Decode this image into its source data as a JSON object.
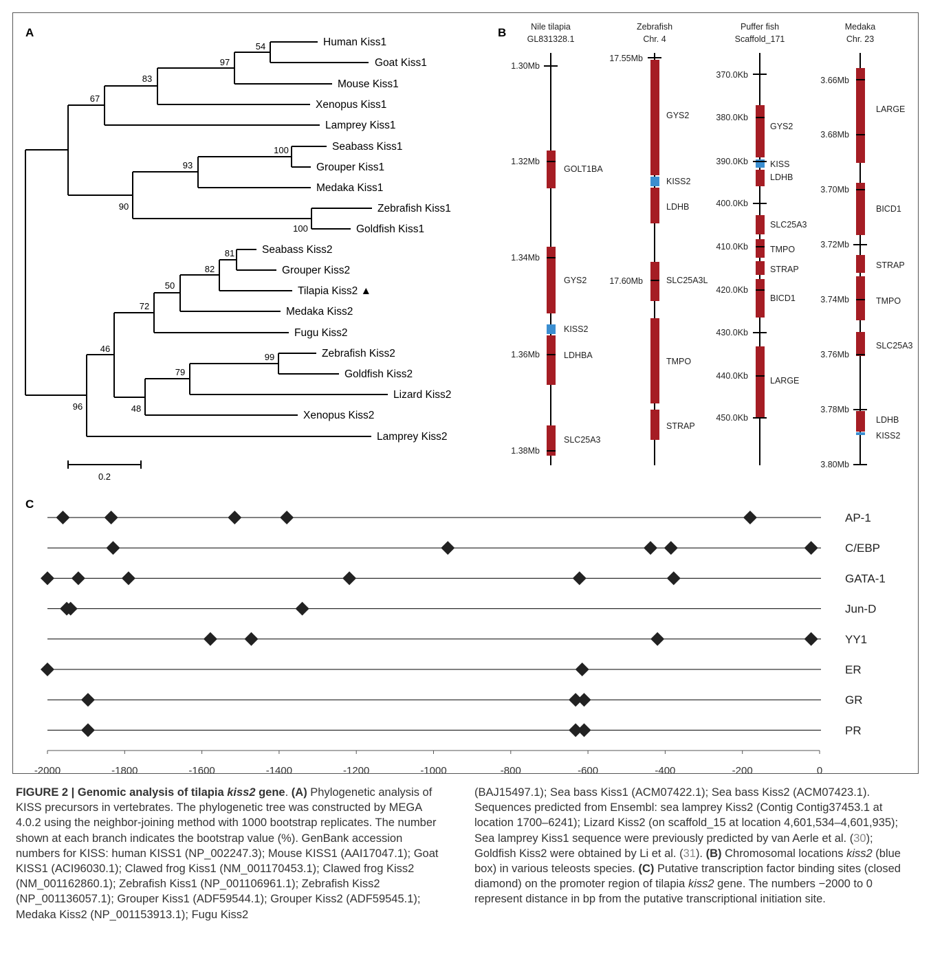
{
  "panels": {
    "A": "A",
    "B": "B",
    "C": "C"
  },
  "tree": {
    "leaves": [
      "Human Kiss1",
      "Goat Kiss1",
      "Mouse Kiss1",
      "Xenopus Kiss1",
      "Lamprey Kiss1",
      "Seabass Kiss1",
      "Grouper Kiss1",
      "Medaka Kiss1",
      "Zebrafish Kiss1",
      "Goldfish Kiss1",
      "Seabass Kiss2",
      "Grouper Kiss2",
      "Tilapia Kiss2 ▲",
      "Medaka Kiss2",
      "Fugu Kiss2",
      "Zebrafish Kiss2",
      "Goldfish Kiss2",
      "Lizard Kiss2",
      "Xenopus Kiss2",
      "Lamprey Kiss2"
    ],
    "bootstrap": [
      "54",
      "97",
      "83",
      "67",
      "100",
      "93",
      "90",
      "100",
      "81",
      "82",
      "50",
      "72",
      "99",
      "79",
      "48",
      "46",
      "96"
    ],
    "scale_label": "0.2"
  },
  "chromosomes": [
    {
      "title1": "Nile tilapia",
      "title2": "GL831328.1",
      "ticks": [
        "1.30Mb",
        "1.32Mb",
        "1.34Mb",
        "1.36Mb",
        "1.38Mb"
      ],
      "genes": [
        "GOLT1BA",
        "GYS2",
        "KISS2",
        "LDHBA",
        "SLC25A3"
      ]
    },
    {
      "title1": "Zebrafish",
      "title2": "Chr. 4",
      "ticks": [
        "17.55Mb",
        "17.60Mb"
      ],
      "genes": [
        "GYS2",
        "KISS2",
        "LDHB",
        "SLC25A3L",
        "TMPO",
        "STRAP"
      ]
    },
    {
      "title1": "Puffer fish",
      "title2": "Scaffold_171",
      "ticks": [
        "370.0Kb",
        "380.0Kb",
        "390.0Kb",
        "400.0Kb",
        "410.0Kb",
        "420.0Kb",
        "430.0Kb",
        "440.0Kb",
        "450.0Kb"
      ],
      "genes": [
        "GYS2",
        "KISS",
        "LDHB",
        "SLC25A3",
        "TMPO",
        "STRAP",
        "BICD1",
        "LARGE"
      ]
    },
    {
      "title1": "Medaka",
      "title2": "Chr. 23",
      "ticks": [
        "3.66Mb",
        "3.68Mb",
        "3.70Mb",
        "3.72Mb",
        "3.74Mb",
        "3.76Mb",
        "3.78Mb",
        "3.80Mb"
      ],
      "genes": [
        "LARGE",
        "BICD1",
        "STRAP",
        "TMPO",
        "SLC25A3",
        "LDHB",
        "KISS2"
      ]
    }
  ],
  "chart_data": {
    "type": "scatter",
    "xlim": [
      -2000,
      0
    ],
    "xticks": [
      "-2000",
      "-1800",
      "-1600",
      "-1400",
      "-1200",
      "-1000",
      "-800",
      "-600",
      "-400",
      "-200",
      "0"
    ],
    "series": [
      {
        "name": "AP-1",
        "values": [
          -1960,
          -1835,
          -1515,
          -1380,
          -180
        ]
      },
      {
        "name": "C/EBP",
        "values": [
          -1830,
          -963,
          -438,
          -385,
          -22
        ]
      },
      {
        "name": "GATA-1",
        "values": [
          -2000,
          -1920,
          -1790,
          -1218,
          -622,
          -378
        ]
      },
      {
        "name": "Jun-D",
        "values": [
          -1950,
          -1940,
          -1340
        ]
      },
      {
        "name": "YY1",
        "values": [
          -1578,
          -1472,
          -420,
          -22
        ]
      },
      {
        "name": "ER",
        "values": [
          -2000,
          -615
        ]
      },
      {
        "name": "GR",
        "values": [
          -1895,
          -632,
          -610
        ]
      },
      {
        "name": "PR",
        "values": [
          -1895,
          -632,
          -610
        ]
      }
    ]
  },
  "caption": {
    "left": [
      {
        "t": "FIGURE 2 | Genomic analysis of tilapia ",
        "b": true
      },
      {
        "t": "kiss2",
        "b": true,
        "i": true
      },
      {
        "t": " gene",
        "b": true
      },
      {
        "t": ". "
      },
      {
        "t": "(A)",
        "b": true
      },
      {
        "t": " Phylogenetic analysis of KISS precursors in vertebrates. The phylogenetic tree was constructed by MEGA 4.0.2 using the neighbor-joining method with 1000 bootstrap replicates. The number shown at each branch indicates the bootstrap value (%). GenBank accession numbers for KISS: human KISS1 (NP_002247.3); Mouse KISS1 (AAI17047.1); Goat KISS1 (ACI96030.1); Clawed frog Kiss1 (NM_001170453.1); Clawed frog Kiss2 (NM_001162860.1); Zebrafish Kiss1 (NP_001106961.1); Zebrafish Kiss2 (NP_001136057.1); Grouper Kiss1 (ADF59544.1); Grouper Kiss2 (ADF59545.1); Medaka Kiss2 (NP_001153913.1); Fugu Kiss2"
      }
    ],
    "right": [
      {
        "t": "(BAJ15497.1); Sea bass Kiss1 (ACM07422.1); Sea bass Kiss2 (ACM07423.1). Sequences predicted from Ensembl: sea lamprey Kiss2 (Contig Contig37453.1 at location 1700–6241); Lizard Kiss2 (on scaffold_15 at location 4,601,534–4,601,935); Sea lamprey Kiss1 sequence were previously predicted by van Aerle et al. ("
      },
      {
        "t": "30",
        "r": true
      },
      {
        "t": "); Goldfish Kiss2 were obtained by Li et al. ("
      },
      {
        "t": "31",
        "r": true
      },
      {
        "t": "). "
      },
      {
        "t": "(B)",
        "b": true
      },
      {
        "t": " Chromosomal locations "
      },
      {
        "t": "kiss2",
        "i": true
      },
      {
        "t": " (blue box) in various teleosts species. "
      },
      {
        "t": "(C)",
        "b": true
      },
      {
        "t": " Putative transcription factor binding sites (closed diamond) on the promoter region of tilapia "
      },
      {
        "t": "kiss2",
        "i": true
      },
      {
        "t": " gene. The numbers −2000 to 0 represent distance in bp from the putative transcriptional initiation site."
      }
    ]
  }
}
